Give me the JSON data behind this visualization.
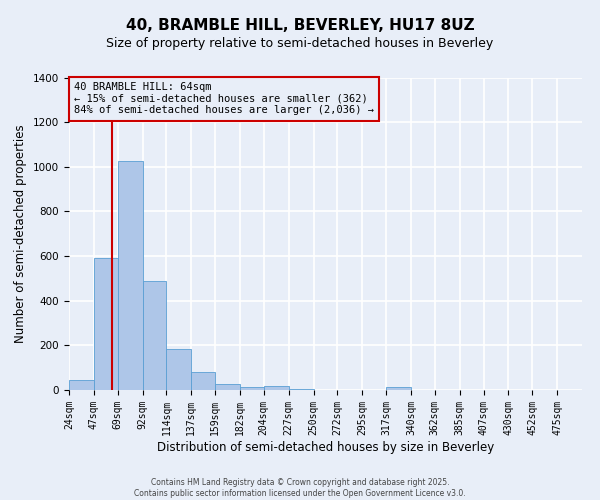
{
  "title": "40, BRAMBLE HILL, BEVERLEY, HU17 8UZ",
  "subtitle": "Size of property relative to semi-detached houses in Beverley",
  "xlabel": "Distribution of semi-detached houses by size in Beverley",
  "ylabel": "Number of semi-detached properties",
  "bin_labels": [
    "24sqm",
    "47sqm",
    "69sqm",
    "92sqm",
    "114sqm",
    "137sqm",
    "159sqm",
    "182sqm",
    "204sqm",
    "227sqm",
    "250sqm",
    "272sqm",
    "295sqm",
    "317sqm",
    "340sqm",
    "362sqm",
    "385sqm",
    "407sqm",
    "430sqm",
    "452sqm",
    "475sqm"
  ],
  "bin_edges": [
    24,
    47,
    69,
    92,
    114,
    137,
    159,
    182,
    204,
    227,
    250,
    272,
    295,
    317,
    340,
    362,
    385,
    407,
    430,
    452,
    475
  ],
  "bar_heights": [
    47,
    590,
    1025,
    487,
    185,
    80,
    27,
    15,
    18,
    5,
    0,
    0,
    0,
    15,
    0,
    0,
    0,
    0,
    0,
    0,
    0
  ],
  "bar_color": "#aec6e8",
  "bar_edgecolor": "#5a9fd4",
  "background_color": "#e8eef8",
  "grid_color": "#ffffff",
  "ylim": [
    0,
    1400
  ],
  "property_size": 64,
  "vline_color": "#cc0000",
  "annotation_line1": "40 BRAMBLE HILL: 64sqm",
  "annotation_line2": "← 15% of semi-detached houses are smaller (362)",
  "annotation_line3": "84% of semi-detached houses are larger (2,036) →",
  "annotation_box_color": "#cc0000",
  "footer_line1": "Contains HM Land Registry data © Crown copyright and database right 2025.",
  "footer_line2": "Contains public sector information licensed under the Open Government Licence v3.0.",
  "title_fontsize": 11,
  "subtitle_fontsize": 9,
  "tick_fontsize": 7,
  "ylabel_fontsize": 8.5,
  "xlabel_fontsize": 8.5,
  "annotation_fontsize": 7.5,
  "footer_fontsize": 5.5
}
